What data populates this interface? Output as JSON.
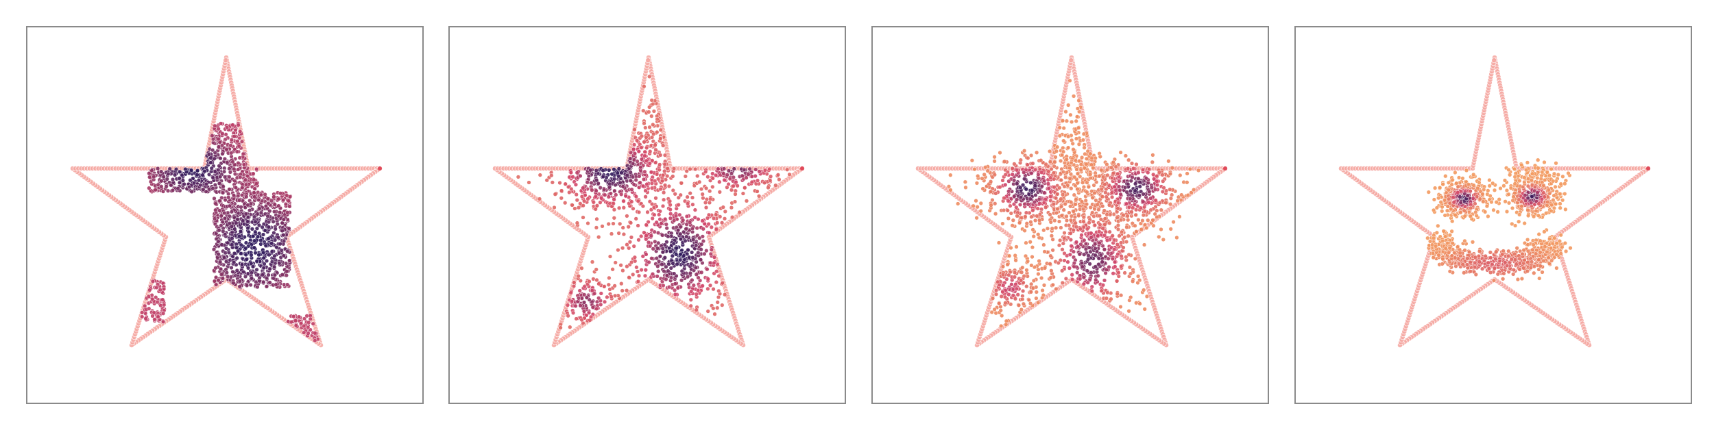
{
  "figure": {
    "panels": [
      {
        "id": "panel-1",
        "stage": "checkerboard"
      },
      {
        "id": "panel-2",
        "stage": "transition-early"
      },
      {
        "id": "panel-3",
        "stage": "transition-late"
      },
      {
        "id": "panel-4",
        "stage": "smiley"
      }
    ],
    "colors": {
      "boundary": "#f4a6a0",
      "panel_border": "#8a8a8a",
      "density_low": "#f7a35e",
      "density_mid": "#d2466a",
      "density_high": "#2e1a5c"
    }
  }
}
